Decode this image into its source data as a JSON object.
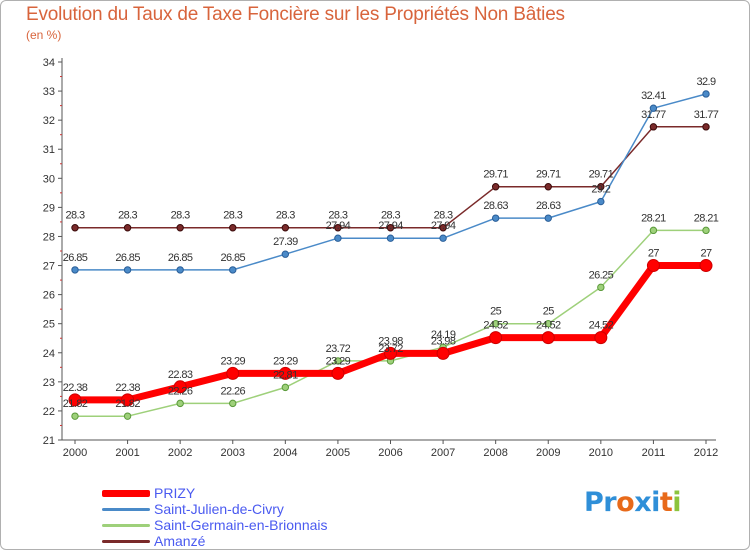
{
  "title": "Evolution du Taux de Taxe Foncière sur les Propriétés Non Bâties",
  "subtitle": "(en %)",
  "logo": {
    "text": "Proxiti",
    "letters": [
      {
        "ch": "P",
        "color": "#2f8fd8"
      },
      {
        "ch": "r",
        "color": "#2f8fd8"
      },
      {
        "ch": "o",
        "color": "#e86a1a"
      },
      {
        "ch": "x",
        "color": "#2f8fd8"
      },
      {
        "ch": "i",
        "color": "#2f8fd8"
      },
      {
        "ch": "t",
        "color": "#e86a1a"
      },
      {
        "ch": "i",
        "color": "#8cc43c"
      }
    ]
  },
  "chart_data": {
    "type": "line",
    "title": "Evolution du Taux de Taxe Foncière sur les Propriétés Non Bâties",
    "ylabel": "(en %)",
    "xlabel": "",
    "x": [
      "2000",
      "2001",
      "2002",
      "2003",
      "2004",
      "2005",
      "2006",
      "2007",
      "2008",
      "2009",
      "2010",
      "2011",
      "2012"
    ],
    "ylim": [
      21,
      34
    ],
    "yticks": [
      "21",
      "22",
      "23",
      "24",
      "25",
      "26",
      "27",
      "28",
      "29",
      "30",
      "31",
      "32",
      "33",
      "34"
    ],
    "grid": false,
    "series": [
      {
        "name": "Amanzé",
        "color": "#7a2a2a",
        "values": [
          28.3,
          28.3,
          28.3,
          28.3,
          28.3,
          28.3,
          28.3,
          28.3,
          29.71,
          29.71,
          29.71,
          31.77,
          31.77
        ],
        "labels": [
          "28.3",
          "28.3",
          "28.3",
          "28.3",
          "28.3",
          "28.3",
          "28.3",
          "28.3",
          "29.71",
          "29.71",
          "29.71",
          "31.77",
          "31.77"
        ]
      },
      {
        "name": "Saint-Julien-de-Civry",
        "color": "#4a8ac8",
        "values": [
          26.85,
          26.85,
          26.85,
          26.85,
          27.39,
          27.94,
          27.94,
          27.94,
          28.63,
          28.63,
          29.2,
          32.41,
          32.9
        ],
        "labels": [
          "26.85",
          "26.85",
          "26.85",
          "26.85",
          "27.39",
          "27.94",
          "27.94",
          "27.94",
          "28.63",
          "28.63",
          "29.2",
          "32.41",
          "32.9"
        ]
      },
      {
        "name": "Saint-Germain-en-Brionnais",
        "color": "#9ed07a",
        "values": [
          21.82,
          21.82,
          22.26,
          22.26,
          22.81,
          23.72,
          23.72,
          24.19,
          25,
          25,
          26.25,
          28.21,
          28.21
        ],
        "labels": [
          "21.82",
          "21.82",
          "22.26",
          "22.26",
          "22.81",
          "23.72",
          "23.72",
          "24.19",
          "25",
          "25",
          "26.25",
          "28.21",
          "28.21"
        ]
      },
      {
        "name": "PRIZY",
        "color": "#ff0000",
        "values": [
          22.38,
          22.38,
          22.83,
          23.29,
          23.29,
          23.29,
          23.98,
          23.98,
          24.52,
          24.52,
          24.52,
          27,
          27
        ],
        "labels": [
          "22.38",
          "22.38",
          "22.83",
          "23.29",
          "23.29",
          "23.29",
          "23.98",
          "23.98",
          "24.52",
          "24.52",
          "24.52",
          "27",
          "27"
        ]
      }
    ],
    "legend": [
      {
        "name": "PRIZY",
        "color": "#ff0000"
      },
      {
        "name": "Saint-Julien-de-Civry",
        "color": "#4a8ac8"
      },
      {
        "name": "Saint-Germain-en-Brionnais",
        "color": "#9ed07a"
      },
      {
        "name": "Amanzé",
        "color": "#7a2a2a"
      }
    ],
    "legend_position": "bottom-left"
  }
}
